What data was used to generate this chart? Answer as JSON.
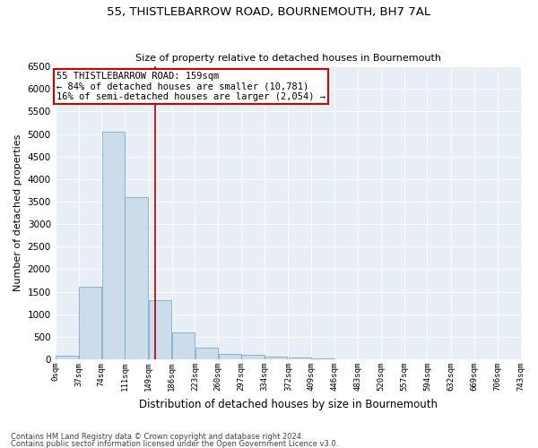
{
  "title1": "55, THISTLEBARROW ROAD, BOURNEMOUTH, BH7 7AL",
  "title2": "Size of property relative to detached houses in Bournemouth",
  "xlabel": "Distribution of detached houses by size in Bournemouth",
  "ylabel": "Number of detached properties",
  "footer1": "Contains HM Land Registry data © Crown copyright and database right 2024.",
  "footer2": "Contains public sector information licensed under the Open Government Licence v3.0.",
  "annotation_line1": "55 THISTLEBARROW ROAD: 159sqm",
  "annotation_line2": "← 84% of detached houses are smaller (10,781)",
  "annotation_line3": "16% of semi-detached houses are larger (2,054) →",
  "bins": [
    0,
    37,
    74,
    111,
    149,
    186,
    223,
    260,
    297,
    334,
    372,
    409,
    446,
    483,
    520,
    557,
    594,
    632,
    669,
    706,
    743
  ],
  "bar_heights": [
    80,
    1620,
    5050,
    3600,
    1310,
    600,
    270,
    125,
    100,
    70,
    45,
    25,
    12,
    8,
    5,
    3,
    2,
    1,
    1,
    1
  ],
  "bar_color": "#ccdcea",
  "bar_edge_color": "#7aaac8",
  "vline_color": "#aa0000",
  "vline_x": 159,
  "annotation_box_color": "#cc0000",
  "background_color": "#e8eef5",
  "ylim": [
    0,
    6500
  ],
  "yticks": [
    0,
    500,
    1000,
    1500,
    2000,
    2500,
    3000,
    3500,
    4000,
    4500,
    5000,
    5500,
    6000,
    6500
  ],
  "figwidth": 6.0,
  "figheight": 5.0,
  "dpi": 100
}
